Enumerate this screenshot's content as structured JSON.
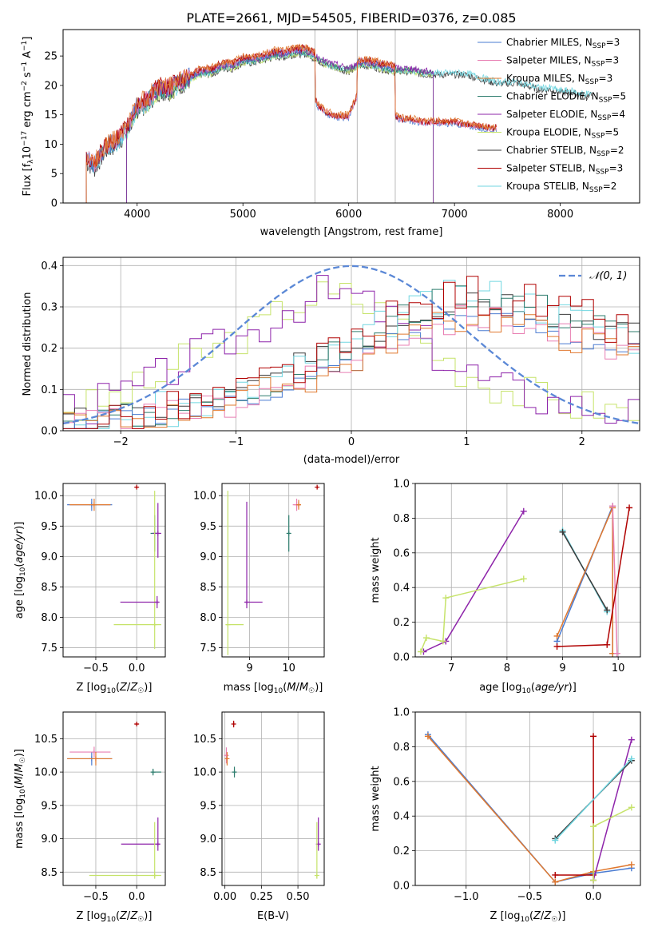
{
  "figure": {
    "title": "PLATE=2661, MJD=54505, FIBERID=0376, z=0.085"
  },
  "legend_entries": [
    {
      "label": "Chabrier MILES, N",
      "sub": "SSP",
      "tail": "=3",
      "color": "#4a7bd1"
    },
    {
      "label": "Salpeter MILES, N",
      "sub": "SSP",
      "tail": "=3",
      "color": "#e87fb3"
    },
    {
      "label": "Kroupa MILES, N",
      "sub": "SSP",
      "tail": "=3",
      "color": "#e0782e"
    },
    {
      "label": "Chabrier ELODIE, N",
      "sub": "SSP",
      "tail": "=5",
      "color": "#2e7d6e"
    },
    {
      "label": "Salpeter ELODIE, N",
      "sub": "SSP",
      "tail": "=4",
      "color": "#8e24aa"
    },
    {
      "label": "Kroupa ELODIE, N",
      "sub": "SSP",
      "tail": "=5",
      "color": "#c6e36a"
    },
    {
      "label": "Chabrier STELIB, N",
      "sub": "SSP",
      "tail": "=2",
      "color": "#3a3a3a"
    },
    {
      "label": "Salpeter STELIB, N",
      "sub": "SSP",
      "tail": "=3",
      "color": "#b00000"
    },
    {
      "label": "Kroupa STELIB, N",
      "sub": "SSP",
      "tail": "=2",
      "color": "#70d6e0"
    }
  ],
  "normal_legend": "𝒩(0, 1)",
  "chart_data": [
    {
      "id": "spectrum",
      "type": "line",
      "xlabel": "wavelength [Angstrom, rest frame]",
      "ylabel": "Flux [f_λ 10^-17 erg cm^-2 s^-1 A^-1]",
      "xlim": [
        3300,
        8750
      ],
      "ylim": [
        0,
        29.5
      ],
      "xticks": [
        4000,
        5000,
        6000,
        7000,
        8000
      ],
      "yticks": [
        0,
        5,
        10,
        15,
        20,
        25
      ],
      "grid": false,
      "vlines": [
        5680,
        6080,
        6440
      ],
      "series_envelope": {
        "x": [
          3520,
          3600,
          3700,
          3800,
          3900,
          4000,
          4100,
          4200,
          4300,
          4400,
          4500,
          4600,
          4700,
          4800,
          4900,
          5000,
          5100,
          5200,
          5300,
          5400,
          5500,
          5600,
          5700,
          5800,
          5900,
          6000,
          6100,
          6200,
          6300,
          6400,
          6500,
          6600,
          6700,
          6800,
          6900,
          7000,
          7100,
          7200,
          7300,
          7400,
          7500,
          7600,
          7700,
          7800,
          7900,
          8000,
          8100,
          8200,
          8300
        ],
        "upper": [
          8,
          7,
          10,
          11,
          13,
          17,
          18,
          20,
          20,
          21,
          22,
          23,
          23,
          24,
          24,
          25,
          25,
          25.5,
          26,
          26,
          26.5,
          26.5,
          25.5,
          24.5,
          24,
          23.5,
          24.5,
          24.5,
          24,
          23.5,
          23.5,
          23.5,
          23,
          23,
          23,
          23,
          23,
          22.5,
          22,
          21.5,
          21.5,
          21.5,
          21,
          20.5,
          20.5,
          20,
          20,
          19.5,
          19.5
        ],
        "lower_red": [
          7.5,
          7,
          9,
          10,
          11,
          15,
          16,
          18,
          19,
          19.5,
          20,
          21,
          21.5,
          22,
          22.5,
          23,
          23,
          23,
          23.5,
          23.5,
          23.5,
          23.5,
          17,
          15.5,
          15,
          15,
          19.5,
          19,
          16.5,
          15.5,
          14.5,
          14.5,
          14,
          14,
          14,
          14,
          13.5,
          13.5,
          13,
          13
        ]
      }
    },
    {
      "id": "residuals",
      "type": "histogram",
      "xlabel": "(data-model)/error",
      "ylabel": "Normed distribution",
      "xlim": [
        -2.5,
        2.5
      ],
      "ylim": [
        0,
        0.42
      ],
      "xticks": [
        -2,
        -1,
        0,
        1,
        2
      ],
      "yticks": [
        0.0,
        0.1,
        0.2,
        0.3,
        0.4
      ],
      "grid": true,
      "curve": "normal pdf mean 0 sd 1",
      "hist_shapes": {
        "bins": 50,
        "late_peak": [
          0.01,
          0.02,
          0.02,
          0.03,
          0.03,
          0.03,
          0.04,
          0.04,
          0.05,
          0.05,
          0.06,
          0.06,
          0.07,
          0.08,
          0.08,
          0.09,
          0.1,
          0.12,
          0.13,
          0.14,
          0.15,
          0.15,
          0.17,
          0.18,
          0.2,
          0.21,
          0.22,
          0.25,
          0.27,
          0.28,
          0.29,
          0.3,
          0.31,
          0.32,
          0.33,
          0.34,
          0.33,
          0.33,
          0.32,
          0.32,
          0.31,
          0.3,
          0.29,
          0.28,
          0.27,
          0.27,
          0.26,
          0.25,
          0.24,
          0.23
        ],
        "early_peak": [
          0.06,
          0.05,
          0.06,
          0.07,
          0.08,
          0.09,
          0.1,
          0.11,
          0.13,
          0.15,
          0.17,
          0.18,
          0.19,
          0.2,
          0.22,
          0.23,
          0.24,
          0.26,
          0.28,
          0.3,
          0.31,
          0.32,
          0.33,
          0.32,
          0.33,
          0.32,
          0.3,
          0.29,
          0.27,
          0.25,
          0.23,
          0.21,
          0.19,
          0.17,
          0.15,
          0.14,
          0.12,
          0.11,
          0.1,
          0.09,
          0.09,
          0.08,
          0.07,
          0.07,
          0.06,
          0.06,
          0.06,
          0.05,
          0.05,
          0.04
        ]
      }
    },
    {
      "id": "age-vs-Z",
      "type": "scatter",
      "xlabel": "Z [log10(Z/Z☉)]",
      "ylabel": "age [log10(age/yr)]",
      "xlim": [
        -0.9,
        0.35
      ],
      "ylim": [
        7.35,
        10.2
      ],
      "xticks": [
        -0.5,
        0.0
      ],
      "yticks": [
        7.5,
        8.0,
        8.5,
        9.0,
        9.5,
        10.0
      ],
      "grid": true,
      "points": [
        {
          "x": -0.55,
          "y": 9.85,
          "xerr": [
            0.3,
            0.25
          ],
          "yerr": [
            0.1,
            0.1
          ],
          "color": "#4a7bd1"
        },
        {
          "x": -0.52,
          "y": 9.85,
          "xerr": [
            0.3,
            0.2
          ],
          "yerr": [
            0.1,
            0.1
          ],
          "color": "#e0782e"
        },
        {
          "x": 0.0,
          "y": 10.14,
          "xerr": [
            0.02,
            0.02
          ],
          "yerr": [
            0.02,
            0.02
          ],
          "color": "#b00000"
        },
        {
          "x": 0.22,
          "y": 9.38,
          "xerr": [
            0.05,
            0.05
          ],
          "yerr": [
            0.3,
            0.3
          ],
          "color": "#2e7d6e"
        },
        {
          "x": 0.26,
          "y": 9.38,
          "xerr": [
            0.06,
            0.04
          ],
          "yerr": [
            0.4,
            0.5
          ],
          "color": "#8e24aa"
        },
        {
          "x": 0.22,
          "y": 7.88,
          "xerr": [
            0.5,
            0.08
          ],
          "yerr": [
            0.4,
            2.2
          ],
          "color": "#c6e36a"
        },
        {
          "x": 0.25,
          "y": 8.25,
          "xerr": [
            0.45,
            0.02
          ],
          "yerr": [
            0.1,
            0.1
          ],
          "color": "#8e24aa"
        }
      ]
    },
    {
      "id": "age-vs-mass",
      "type": "scatter",
      "xlabel": "mass [log10(M/M☉)]",
      "ylabel": "",
      "xlim": [
        8.3,
        10.9
      ],
      "ylim": [
        7.35,
        10.2
      ],
      "xticks": [
        9,
        10
      ],
      "yticks": [
        7.5,
        8.0,
        8.5,
        9.0,
        9.5,
        10.0
      ],
      "grid": true,
      "points": [
        {
          "x": 10.2,
          "y": 9.85,
          "xerr": [
            0.1,
            0.1
          ],
          "yerr": [
            0.1,
            0.1
          ],
          "color": "#e87fb3"
        },
        {
          "x": 10.25,
          "y": 9.85,
          "xerr": [
            0.05,
            0.05
          ],
          "yerr": [
            0.08,
            0.08
          ],
          "color": "#e0782e"
        },
        {
          "x": 10.72,
          "y": 10.14,
          "xerr": [
            0.02,
            0.02
          ],
          "yerr": [
            0.02,
            0.02
          ],
          "color": "#b00000"
        },
        {
          "x": 10.0,
          "y": 9.38,
          "xerr": [
            0.05,
            0.05
          ],
          "yerr": [
            0.3,
            0.3
          ],
          "color": "#2e7d6e"
        },
        {
          "x": 8.93,
          "y": 8.25,
          "xerr": [
            0.05,
            0.4
          ],
          "yerr": [
            0.1,
            1.65
          ],
          "color": "#8e24aa"
        },
        {
          "x": 8.45,
          "y": 7.88,
          "xerr": [
            0.05,
            0.4
          ],
          "yerr": [
            0.5,
            2.2
          ],
          "color": "#c6e36a"
        }
      ]
    },
    {
      "id": "weight-vs-age",
      "type": "line",
      "xlabel": "age [log10(age/yr)]",
      "ylabel": "mass weight",
      "xlim": [
        6.35,
        10.4
      ],
      "ylim": [
        0,
        1.0
      ],
      "xticks": [
        7,
        8,
        9,
        10
      ],
      "yticks": [
        0.0,
        0.2,
        0.4,
        0.6,
        0.8,
        1.0
      ],
      "grid": true,
      "series": [
        {
          "color": "#8e24aa",
          "x": [
            6.5,
            6.9,
            8.3
          ],
          "y": [
            0.03,
            0.09,
            0.84
          ]
        },
        {
          "color": "#c6e36a",
          "x": [
            6.45,
            6.55,
            6.85,
            6.9,
            8.3
          ],
          "y": [
            0.03,
            0.11,
            0.09,
            0.34,
            0.45
          ]
        },
        {
          "color": "#70d6e0",
          "x": [
            9.0,
            9.8
          ],
          "y": [
            0.73,
            0.26
          ]
        },
        {
          "color": "#3a3a3a",
          "x": [
            9.0,
            9.8
          ],
          "y": [
            0.72,
            0.27
          ]
        },
        {
          "color": "#4a7bd1",
          "x": [
            8.9,
            9.9,
            9.9
          ],
          "y": [
            0.09,
            0.87,
            0.02
          ]
        },
        {
          "color": "#e0782e",
          "x": [
            8.9,
            9.9,
            9.9
          ],
          "y": [
            0.12,
            0.86,
            0.02
          ]
        },
        {
          "color": "#e87fb3",
          "x": [
            9.9,
            9.98
          ],
          "y": [
            0.87,
            0.02
          ]
        },
        {
          "color": "#b00000",
          "x": [
            8.9,
            9.8,
            10.2
          ],
          "y": [
            0.06,
            0.07,
            0.86
          ]
        }
      ]
    },
    {
      "id": "mass-vs-Z",
      "type": "scatter",
      "xlabel": "Z [log10(Z/Z☉)]",
      "ylabel": "mass [log10(M/M☉)]",
      "xlim": [
        -0.9,
        0.35
      ],
      "ylim": [
        8.3,
        10.9
      ],
      "xticks": [
        -0.5,
        0.0
      ],
      "yticks": [
        8.5,
        9.0,
        9.5,
        10.0,
        10.5
      ],
      "grid": true,
      "points": [
        {
          "x": -0.55,
          "y": 10.2,
          "xerr": [
            0.3,
            0.25
          ],
          "yerr": [
            0.1,
            0.1
          ],
          "color": "#4a7bd1"
        },
        {
          "x": -0.52,
          "y": 10.3,
          "xerr": [
            0.3,
            0.2
          ],
          "yerr": [
            0.08,
            0.08
          ],
          "color": "#e87fb3"
        },
        {
          "x": -0.5,
          "y": 10.2,
          "xerr": [
            0.35,
            0.2
          ],
          "yerr": [
            0.1,
            0.1
          ],
          "color": "#e0782e"
        },
        {
          "x": 0.0,
          "y": 10.72,
          "xerr": [
            0.02,
            0.02
          ],
          "yerr": [
            0.02,
            0.02
          ],
          "color": "#b00000"
        },
        {
          "x": 0.2,
          "y": 10.0,
          "xerr": [
            0.02,
            0.1
          ],
          "yerr": [
            0.05,
            0.05
          ],
          "color": "#2e7d6e"
        },
        {
          "x": 0.26,
          "y": 8.92,
          "xerr": [
            0.45,
            0.02
          ],
          "yerr": [
            0.1,
            0.4
          ],
          "color": "#8e24aa"
        },
        {
          "x": 0.22,
          "y": 8.45,
          "xerr": [
            0.8,
            0.08
          ],
          "yerr": [
            0.05,
            0.8
          ],
          "color": "#c6e36a"
        }
      ]
    },
    {
      "id": "mass-vs-ebv",
      "type": "scatter",
      "xlabel": "E(B-V)",
      "ylabel": "",
      "xlim": [
        -0.02,
        0.68
      ],
      "ylim": [
        8.3,
        10.9
      ],
      "xticks": [
        0.0,
        0.25,
        0.5
      ],
      "yticks": [
        8.5,
        9.0,
        9.5,
        10.0,
        10.5
      ],
      "grid": true,
      "points": [
        {
          "x": 0.01,
          "y": 10.25,
          "xerr": [
            0.005,
            0.005
          ],
          "yerr": [
            0.12,
            0.12
          ],
          "color": "#e87fb3"
        },
        {
          "x": 0.015,
          "y": 10.2,
          "xerr": [
            0.005,
            0.005
          ],
          "yerr": [
            0.1,
            0.1
          ],
          "color": "#e0782e"
        },
        {
          "x": 0.06,
          "y": 10.72,
          "xerr": [
            0.005,
            0.005
          ],
          "yerr": [
            0.05,
            0.05
          ],
          "color": "#b00000"
        },
        {
          "x": 0.065,
          "y": 10.0,
          "xerr": [
            0.005,
            0.005
          ],
          "yerr": [
            0.08,
            0.08
          ],
          "color": "#2e7d6e"
        },
        {
          "x": 0.64,
          "y": 8.92,
          "xerr": [
            0.005,
            0.005
          ],
          "yerr": [
            0.1,
            0.4
          ],
          "color": "#8e24aa"
        },
        {
          "x": 0.63,
          "y": 8.45,
          "xerr": [
            0.005,
            0.005
          ],
          "yerr": [
            0.05,
            0.8
          ],
          "color": "#c6e36a"
        }
      ]
    },
    {
      "id": "weight-vs-Z",
      "type": "line",
      "xlabel": "Z [log10(Z/Z☉)]",
      "ylabel": "mass weight",
      "xlim": [
        -1.4,
        0.37
      ],
      "ylim": [
        0,
        1.0
      ],
      "xticks": [
        -1.0,
        -0.5,
        0.0
      ],
      "yticks": [
        0.0,
        0.2,
        0.4,
        0.6,
        0.8,
        1.0
      ],
      "grid": true,
      "series": [
        {
          "color": "#4a7bd1",
          "x": [
            -1.3,
            -0.3,
            0.0,
            0.3
          ],
          "y": [
            0.87,
            0.02,
            0.07,
            0.1
          ]
        },
        {
          "color": "#e0782e",
          "x": [
            -1.3,
            -0.3,
            0.0,
            0.3
          ],
          "y": [
            0.86,
            0.02,
            0.08,
            0.12
          ]
        },
        {
          "color": "#b00000",
          "x": [
            -0.3,
            0.0,
            0.0
          ],
          "y": [
            0.06,
            0.06,
            0.86
          ]
        },
        {
          "color": "#8e24aa",
          "x": [
            0.0,
            0.3
          ],
          "y": [
            0.03,
            0.84
          ]
        },
        {
          "color": "#c6e36a",
          "x": [
            0.0,
            0.0,
            0.3
          ],
          "y": [
            0.03,
            0.34,
            0.45
          ]
        },
        {
          "color": "#3a3a3a",
          "x": [
            -0.3,
            0.3
          ],
          "y": [
            0.27,
            0.72
          ]
        },
        {
          "color": "#70d6e0",
          "x": [
            -0.3,
            0.3
          ],
          "y": [
            0.26,
            0.73
          ]
        }
      ]
    }
  ]
}
